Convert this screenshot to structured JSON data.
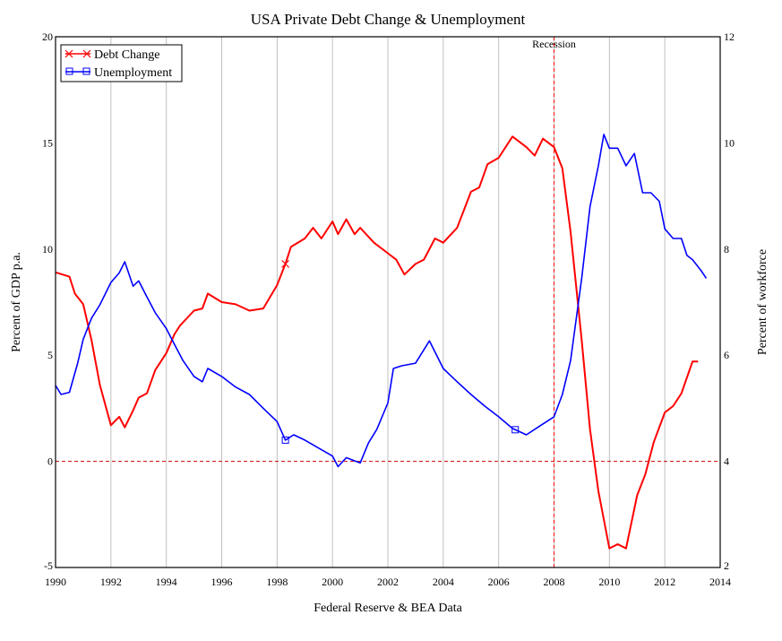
{
  "chart_data": {
    "type": "line",
    "title": "USA Private Debt Change & Unemployment",
    "xlabel": "Federal Reserve & BEA Data",
    "ylabel_left": "Percent of GDP p.a.",
    "ylabel_right": "Percent of workforce",
    "xlim": [
      1990,
      2014
    ],
    "ylim_left": [
      -5,
      20
    ],
    "ylim_right": [
      2,
      12
    ],
    "x_ticks": [
      "1990",
      "1992",
      "1994",
      "1996",
      "1998",
      "2000",
      "2002",
      "2004",
      "2006",
      "2008",
      "2010",
      "2012",
      "2014"
    ],
    "y_left_ticks": [
      "-5",
      "0",
      "5",
      "10",
      "15",
      "20"
    ],
    "y_right_ticks": [
      "2",
      "4",
      "6",
      "8",
      "10",
      "12"
    ],
    "grid": "vertical",
    "legend_position": "top-left",
    "annotation": {
      "label": "Recession",
      "x": 2008
    },
    "reference_line_left": 0,
    "series": [
      {
        "name": "Debt Change",
        "axis": "left",
        "color": "#ff0000",
        "marker": "x",
        "marker_at": [
          1998.3
        ],
        "x": [
          1990,
          1990.5,
          1990.7,
          1991,
          1991.3,
          1991.6,
          1992,
          1992.3,
          1992.5,
          1992.8,
          1993,
          1993.3,
          1993.6,
          1994,
          1994.3,
          1994.5,
          1995,
          1995.3,
          1995.5,
          1996,
          1996.5,
          1997,
          1997.5,
          1998,
          1998.3,
          1998.5,
          1999,
          1999.3,
          1999.6,
          2000,
          2000.2,
          2000.5,
          2000.8,
          2001,
          2001.5,
          2002,
          2002.3,
          2002.6,
          2003,
          2003.3,
          2003.7,
          2004,
          2004.5,
          2005,
          2005.3,
          2005.6,
          2006,
          2006.5,
          2007,
          2007.3,
          2007.6,
          2008,
          2008.3,
          2008.6,
          2009,
          2009.3,
          2009.6,
          2010,
          2010.3,
          2010.6,
          2011,
          2011.3,
          2011.6,
          2012,
          2012.3,
          2012.6,
          2013,
          2013.2
        ],
        "values": [
          8.9,
          8.7,
          7.9,
          7.4,
          5.7,
          3.6,
          1.7,
          2.1,
          1.6,
          2.4,
          3.0,
          3.2,
          4.3,
          5.1,
          6.0,
          6.4,
          7.1,
          7.2,
          7.9,
          7.5,
          7.4,
          7.1,
          7.2,
          8.3,
          9.3,
          10.1,
          10.5,
          11.0,
          10.5,
          11.3,
          10.7,
          11.4,
          10.7,
          11.0,
          10.3,
          9.8,
          9.5,
          8.8,
          9.3,
          9.5,
          10.5,
          10.3,
          11.0,
          12.7,
          12.9,
          14.0,
          14.3,
          15.3,
          14.8,
          14.4,
          15.2,
          14.8,
          13.8,
          10.8,
          5.7,
          1.5,
          -1.4,
          -4.1,
          -3.9,
          -4.1,
          -1.6,
          -0.6,
          0.9,
          2.3,
          2.6,
          3.2,
          4.7,
          4.7
        ]
      },
      {
        "name": "Unemployment",
        "axis": "right",
        "color": "#0000ff",
        "marker": "square",
        "marker_at": [
          1998.3,
          2006.6
        ],
        "x": [
          1990,
          1990.2,
          1990.5,
          1990.8,
          1991,
          1991.3,
          1991.6,
          1992,
          1992.3,
          1992.5,
          1992.8,
          1993,
          1993.3,
          1993.6,
          1994,
          1994.3,
          1994.6,
          1995,
          1995.3,
          1995.5,
          1996,
          1996.5,
          1997,
          1997.5,
          1998,
          1998.3,
          1998.6,
          1999,
          1999.5,
          2000,
          2000.2,
          2000.5,
          2001,
          2001.3,
          2001.6,
          2002,
          2002.2,
          2002.5,
          2003,
          2003.5,
          2004,
          2004.5,
          2005,
          2005.5,
          2006,
          2006.5,
          2007,
          2007.5,
          2008,
          2008.3,
          2008.6,
          2009,
          2009.3,
          2009.6,
          2009.8,
          2010,
          2010.3,
          2010.6,
          2010.9,
          2011.2,
          2011.5,
          2011.8,
          2012,
          2012.3,
          2012.6,
          2012.8,
          2013,
          2013.3,
          2013.5
        ],
        "values": [
          5.43,
          5.26,
          5.3,
          5.85,
          6.3,
          6.7,
          6.95,
          7.37,
          7.55,
          7.76,
          7.3,
          7.4,
          7.1,
          6.8,
          6.5,
          6.2,
          5.9,
          5.6,
          5.5,
          5.75,
          5.6,
          5.4,
          5.26,
          5.0,
          4.75,
          4.4,
          4.5,
          4.4,
          4.25,
          4.1,
          3.9,
          4.07,
          3.97,
          4.35,
          4.6,
          5.1,
          5.75,
          5.8,
          5.85,
          6.27,
          5.75,
          5.5,
          5.26,
          5.04,
          4.84,
          4.62,
          4.5,
          4.67,
          4.84,
          5.26,
          5.9,
          7.45,
          8.8,
          9.57,
          10.16,
          9.9,
          9.9,
          9.57,
          9.8,
          9.06,
          9.06,
          8.9,
          8.38,
          8.2,
          8.2,
          7.88,
          7.8,
          7.6,
          7.45
        ]
      }
    ]
  }
}
